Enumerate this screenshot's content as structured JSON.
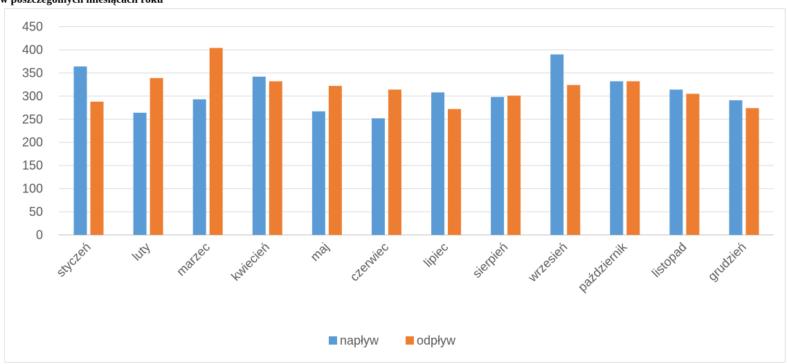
{
  "caption": "w poszczególnych miesiącach roku",
  "chart_data": {
    "type": "bar",
    "title": "",
    "xlabel": "",
    "ylabel": "",
    "ylim": [
      0,
      450
    ],
    "yticks": [
      0,
      50,
      100,
      150,
      200,
      250,
      300,
      350,
      400,
      450
    ],
    "grid": true,
    "legend_position": "bottom",
    "categories": [
      "styczeń",
      "luty",
      "marzec",
      "kwiecień",
      "maj",
      "czerwiec",
      "lipiec",
      "sierpień",
      "wrzesień",
      "październik",
      "listopad",
      "grudzień"
    ],
    "series": [
      {
        "name": "napływ",
        "color": "#5b9bd5",
        "values": [
          364,
          264,
          293,
          342,
          267,
          252,
          308,
          298,
          390,
          332,
          314,
          291
        ]
      },
      {
        "name": "odpływ",
        "color": "#ed7d31",
        "values": [
          288,
          339,
          404,
          332,
          322,
          314,
          272,
          301,
          324,
          332,
          305,
          274
        ]
      }
    ]
  }
}
